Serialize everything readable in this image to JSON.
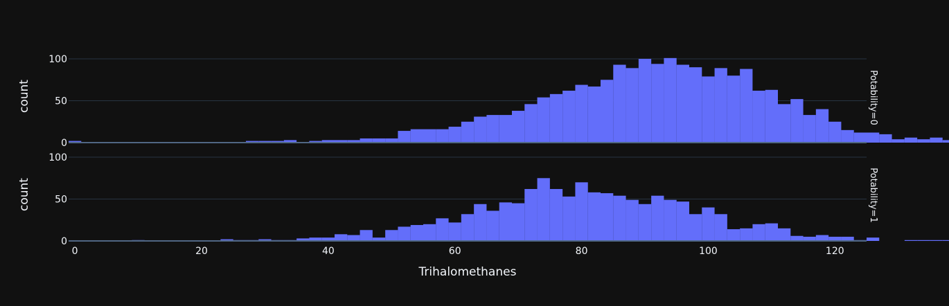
{
  "colors": {
    "background": "#111111",
    "bar": "#636efa",
    "grid": "#283442",
    "zeroline": "#506784",
    "text": "#f2f5fa"
  },
  "chart_data": {
    "type": "bar",
    "xlabel": "Trihalomethanes",
    "ylabel": "count",
    "xlim": [
      -1,
      125
    ],
    "x_ticks": [
      "0",
      "20",
      "40",
      "60",
      "80",
      "100",
      "120"
    ],
    "x_tick_values": [
      0,
      20,
      40,
      60,
      80,
      100,
      120
    ],
    "grid": true,
    "bin_start": -1,
    "bin_width": 2,
    "facets": [
      {
        "label": "Potability=0",
        "ylim": [
          0,
          105
        ],
        "y_ticks": [
          "0",
          "50",
          "100"
        ],
        "y_tick_values": [
          0,
          50,
          100
        ],
        "values": [
          2,
          0,
          0,
          0,
          0,
          0,
          0,
          0,
          0,
          0,
          0,
          0,
          0,
          0,
          2,
          2,
          2,
          3,
          0,
          2,
          3,
          3,
          3,
          5,
          5,
          5,
          14,
          16,
          16,
          16,
          19,
          25,
          31,
          33,
          33,
          38,
          46,
          54,
          58,
          62,
          69,
          67,
          75,
          93,
          89,
          100,
          94,
          101,
          93,
          90,
          79,
          89,
          80,
          88,
          62,
          63,
          46,
          52,
          33,
          40,
          25,
          15,
          12,
          12,
          10,
          4,
          6,
          4,
          6,
          3,
          2,
          3,
          2,
          0,
          0,
          2,
          2,
          0,
          0
        ]
      },
      {
        "label": "Potability=1",
        "ylim": [
          0,
          105
        ],
        "y_ticks": [
          "0",
          "50",
          "100"
        ],
        "y_tick_values": [
          0,
          50,
          100
        ],
        "values": [
          0,
          0,
          0,
          0,
          0,
          1,
          0,
          0,
          0,
          0,
          0,
          0,
          2,
          1,
          1,
          2,
          1,
          1,
          3,
          4,
          4,
          8,
          7,
          13,
          4,
          13,
          17,
          19,
          20,
          27,
          22,
          32,
          44,
          36,
          46,
          45,
          62,
          75,
          62,
          53,
          70,
          58,
          57,
          54,
          49,
          44,
          54,
          49,
          47,
          32,
          40,
          32,
          14,
          15,
          20,
          21,
          15,
          6,
          5,
          7,
          5,
          5,
          1,
          4,
          0,
          0,
          1,
          1,
          1,
          1,
          1,
          0,
          0,
          0,
          1,
          0
        ]
      }
    ]
  }
}
